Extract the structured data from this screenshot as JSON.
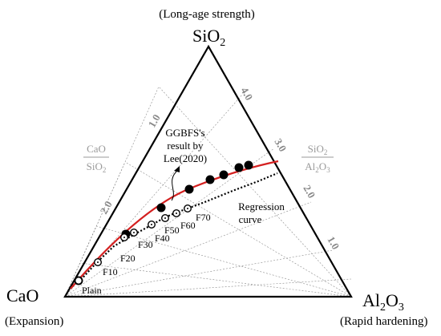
{
  "vertices": {
    "top": {
      "label": "SiO",
      "sub": "2",
      "annotation": "(Long-age strength)"
    },
    "left": {
      "label": "CaO",
      "annotation": "(Expansion)"
    },
    "right": {
      "label": "Al",
      "sub1": "2",
      "mid": "O",
      "sub2": "3",
      "annotation": "(Rapid hardening)"
    }
  },
  "ratio_labels": {
    "left": {
      "numerator": "CaO",
      "denominator": "SiO",
      "denominator_sub": "2"
    },
    "right": {
      "numerator": "SiO",
      "numerator_sub": "2",
      "denominator": "Al",
      "denominator_sub1": "2",
      "denominator_mid": "O",
      "denominator_sub2": "3"
    }
  },
  "left_scale": [
    "1.0",
    "2.0"
  ],
  "right_scale": [
    "4.0",
    "3.0",
    "2.0",
    "1.0"
  ],
  "annotations": {
    "ggbfs_line1": "GGBFS's",
    "ggbfs_line2": "result by",
    "ggbfs_line3": "Lee(2020)",
    "regression_line1": "Regression",
    "regression_line2": "curve"
  },
  "open_points": [
    "Plain",
    "F10",
    "F20",
    "F30",
    "F40",
    "F50",
    "F60",
    "F70"
  ],
  "colors": {
    "curve": "#d42020",
    "ratio_label": "#9a9a9a",
    "lines": "#000000",
    "guides": "#888888"
  }
}
